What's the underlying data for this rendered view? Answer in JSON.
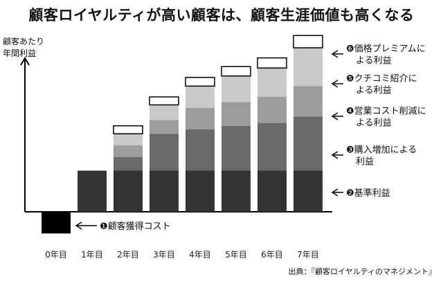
{
  "title": "顧客ロイヤルティが高い顧客は、顧客生涯価値も高くなる",
  "ylabel_lines": [
    "顧客あたり",
    "年間利益"
  ],
  "source": "出典：『顧客ロイヤルティのマネジメント』",
  "colors": {
    "acquisition_cost": "#000000",
    "base_profit": "#333333",
    "purchase_increase": "#6a6a6a",
    "cost_reduction": "#9c9c9c",
    "referral": "#c9c9c9",
    "price_premium": "#ffffff"
  },
  "chart_data": {
    "type": "bar",
    "stacked": true,
    "categories": [
      "0年目",
      "1年目",
      "2年目",
      "3年目",
      "4年目",
      "5年目",
      "6年目",
      "7年目"
    ],
    "ylim": [
      -40,
      240
    ],
    "grid": false,
    "series": [
      {
        "key": "acquisition_cost",
        "name": "顧客獲得コスト",
        "number": "❶",
        "label_lines": [
          "顧客獲得コスト"
        ],
        "values": [
          -30,
          0,
          0,
          0,
          0,
          0,
          0,
          0
        ]
      },
      {
        "key": "base_profit",
        "name": "基準利益",
        "number": "❷",
        "label_lines": [
          "基準利益"
        ],
        "values": [
          0,
          57,
          57,
          57,
          57,
          57,
          57,
          57
        ]
      },
      {
        "key": "purchase_increase",
        "name": "購入増加による利益",
        "number": "❸",
        "label_lines": [
          "購入増加による",
          "利益"
        ],
        "values": [
          0,
          0,
          19,
          51,
          57,
          62,
          66,
          75
        ]
      },
      {
        "key": "cost_reduction",
        "name": "営業コスト削減による利益",
        "number": "❹",
        "label_lines": [
          "営業コスト削減に",
          "よる利益"
        ],
        "values": [
          0,
          0,
          16,
          19,
          30,
          33,
          36,
          42
        ]
      },
      {
        "key": "referral",
        "name": "クチコミ紹介による利益",
        "number": "❺",
        "label_lines": [
          "クチコミ紹介に",
          "よる利益"
        ],
        "values": [
          0,
          0,
          16,
          21,
          30,
          36,
          40,
          53
        ]
      },
      {
        "key": "price_premium",
        "name": "価格プレミアムによる利益",
        "number": "❻",
        "label_lines": [
          "価格プレミアムに",
          "よる利益"
        ],
        "values": [
          0,
          0,
          11,
          11,
          12,
          13,
          14,
          17
        ]
      }
    ]
  }
}
